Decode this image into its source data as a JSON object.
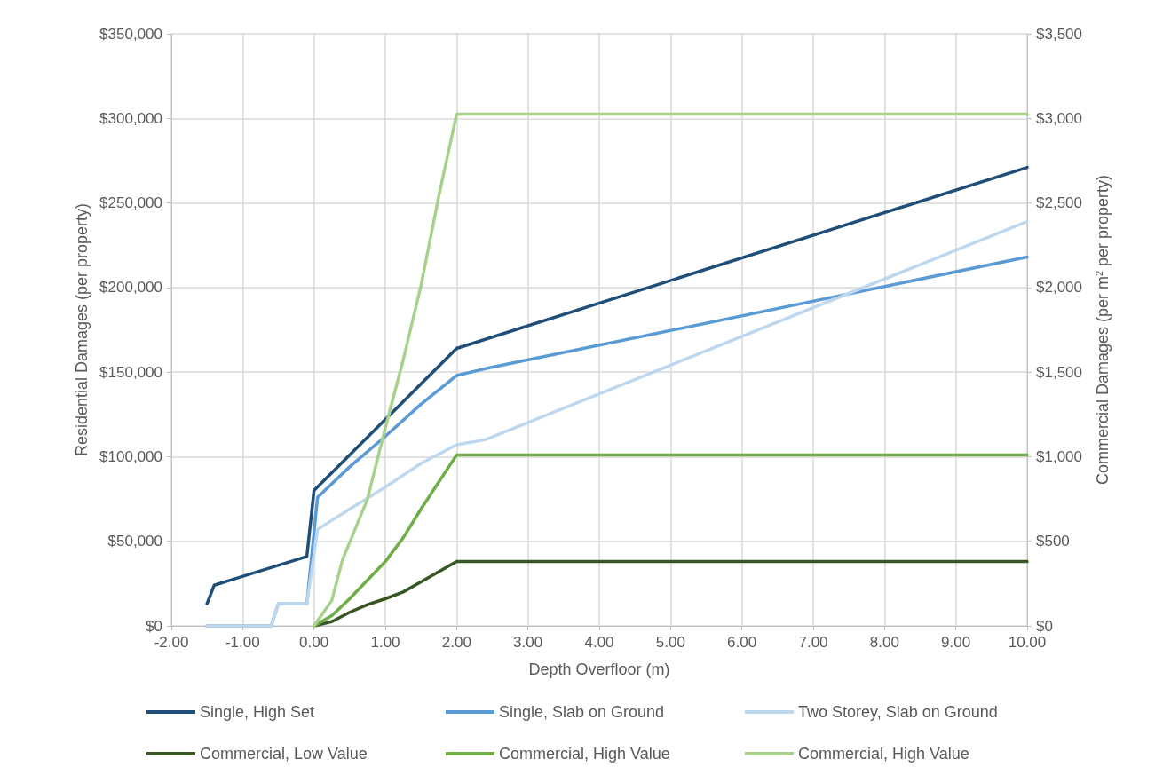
{
  "chart_data": {
    "type": "line",
    "xlabel": "Depth Overfloor (m)",
    "ylabel": "Residential Damages (per property)",
    "y2label": "Commercial Damages (per m$^{2}$ per property)",
    "xlim": [
      -2,
      10
    ],
    "xticks": [
      {
        "value": -2,
        "label": "-2.00"
      },
      {
        "value": -1,
        "label": "-1.00"
      },
      {
        "value": 0,
        "label": "0.00"
      },
      {
        "value": 1,
        "label": "1.00"
      },
      {
        "value": 2,
        "label": "2.00"
      },
      {
        "value": 3,
        "label": "3.00"
      },
      {
        "value": 4,
        "label": "4.00"
      },
      {
        "value": 5,
        "label": "5.00"
      },
      {
        "value": 6,
        "label": "6.00"
      },
      {
        "value": 7,
        "label": "7.00"
      },
      {
        "value": 8,
        "label": "8.00"
      },
      {
        "value": 9,
        "label": "9.00"
      },
      {
        "value": 10,
        "label": "10.00"
      }
    ],
    "ylim": [
      0,
      350000
    ],
    "yticks": [
      {
        "value": 0,
        "label": "$0"
      },
      {
        "value": 50000,
        "label": "$50,000"
      },
      {
        "value": 100000,
        "label": "$100,000"
      },
      {
        "value": 150000,
        "label": "$150,000"
      },
      {
        "value": 200000,
        "label": "$200,000"
      },
      {
        "value": 250000,
        "label": "$250,000"
      },
      {
        "value": 300000,
        "label": "$300,000"
      },
      {
        "value": 350000,
        "label": "$350,000"
      }
    ],
    "y2lim": [
      0,
      3500
    ],
    "y2ticks": [
      {
        "value": 0,
        "label": "$0"
      },
      {
        "value": 500,
        "label": "$500"
      },
      {
        "value": 1000,
        "label": "$1,000"
      },
      {
        "value": 1500,
        "label": "$1,500"
      },
      {
        "value": 2000,
        "label": "$2,000"
      },
      {
        "value": 2500,
        "label": "$2,500"
      },
      {
        "value": 3000,
        "label": "$3,000"
      },
      {
        "value": 3500,
        "label": "$3,500"
      }
    ],
    "grid": true,
    "legend": "bottom",
    "marker": "none",
    "line_style": "solid",
    "series": [
      {
        "name": "Single, High Set",
        "color": "#1f4e79",
        "x": [
          -1.5,
          -1.4,
          -0.1,
          0,
          0.5,
          1,
          1.5,
          2,
          10
        ],
        "values": [
          13000,
          24000,
          41000,
          80000,
          101000,
          122000,
          143000,
          164000,
          271000
        ]
      },
      {
        "name": "Single, Slab on Ground",
        "color": "#5b9bd5",
        "x": [
          -1.5,
          -0.6,
          -0.5,
          -0.1,
          0.05,
          0.5,
          1,
          1.5,
          2,
          2.4,
          10
        ],
        "values": [
          0,
          0,
          13000,
          13000,
          76000,
          94000,
          112000,
          131000,
          148000,
          152000,
          218000
        ]
      },
      {
        "name": "Two Storey, Slab on Ground",
        "color": "#bdd7ee",
        "x": [
          -1.5,
          -0.6,
          -0.5,
          -0.1,
          0.05,
          0.5,
          1,
          1.5,
          2,
          2.4,
          10
        ],
        "values": [
          0,
          0,
          13000,
          13000,
          57000,
          69000,
          82000,
          96000,
          107000,
          110000,
          239000
        ]
      },
      {
        "name": "Commercial, Low Value",
        "color": "#375623",
        "axis": "y2",
        "x": [
          0,
          0.25,
          0.5,
          0.75,
          1,
          1.25,
          1.5,
          1.75,
          2,
          10
        ],
        "values": [
          0,
          25,
          80,
          125,
          160,
          200,
          260,
          320,
          380,
          380
        ]
      },
      {
        "name": "Commercial, High Value",
        "color": "#70ad47",
        "axis": "y2",
        "x": [
          0,
          0.25,
          0.5,
          0.75,
          1,
          1.25,
          1.5,
          1.75,
          2,
          10
        ],
        "values": [
          0,
          60,
          160,
          270,
          380,
          520,
          690,
          850,
          1010,
          1010
        ]
      },
      {
        "name": "Commercial, High Value",
        "color": "#a9d18e",
        "axis": "y2",
        "x": [
          0,
          0.25,
          0.4,
          0.75,
          1,
          1.25,
          1.5,
          1.75,
          2,
          10
        ],
        "values": [
          0,
          150,
          390,
          750,
          1170,
          1570,
          2010,
          2540,
          3025,
          3025
        ]
      }
    ]
  }
}
